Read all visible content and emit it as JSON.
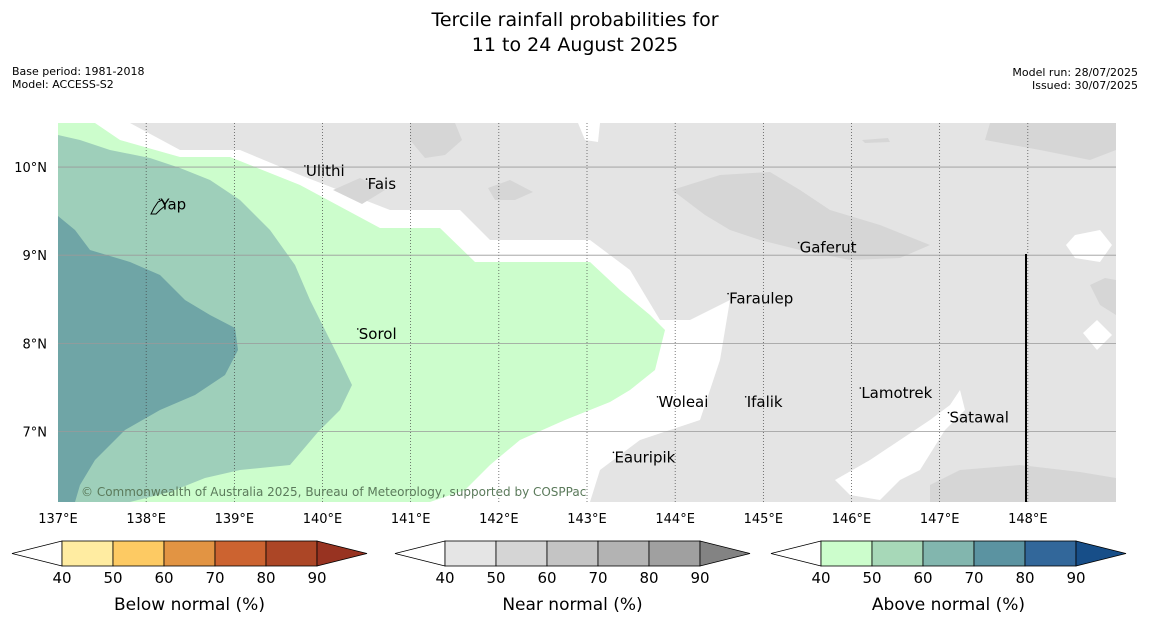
{
  "title": {
    "line1": "Tercile rainfall probabilities for",
    "line2": "11 to 24 August 2025"
  },
  "meta_left": {
    "base_period": "Base period: 1981-2018",
    "model": "Model: ACCESS-S2"
  },
  "meta_right": {
    "model_run": "Model run: 28/07/2025",
    "issued": "Issued: 30/07/2025"
  },
  "copyright": "© Commonwealth of Australia 2025, Bureau of Meteorology, supported by COSPPac",
  "map": {
    "lon_range": [
      137,
      149
    ],
    "lat_range": [
      6.2,
      10.5
    ],
    "lon_ticks": [
      {
        "value": 137,
        "label": "137°E"
      },
      {
        "value": 138,
        "label": "138°E"
      },
      {
        "value": 139,
        "label": "139°E"
      },
      {
        "value": 140,
        "label": "140°E"
      },
      {
        "value": 141,
        "label": "141°E"
      },
      {
        "value": 142,
        "label": "142°E"
      },
      {
        "value": 143,
        "label": "143°E"
      },
      {
        "value": 144,
        "label": "144°E"
      },
      {
        "value": 145,
        "label": "145°E"
      },
      {
        "value": 146,
        "label": "146°E"
      },
      {
        "value": 147,
        "label": "147°E"
      },
      {
        "value": 148,
        "label": "148°E"
      }
    ],
    "lat_ticks": [
      {
        "value": 10,
        "label": "10°N"
      },
      {
        "value": 9,
        "label": "9°N"
      },
      {
        "value": 8,
        "label": "8°N"
      },
      {
        "value": 7,
        "label": "7°N"
      }
    ],
    "places": [
      {
        "name": "Ulithi",
        "lon": 139.8,
        "lat": 9.9
      },
      {
        "name": "Fais",
        "lon": 140.5,
        "lat": 9.75
      },
      {
        "name": "Yap",
        "lon": 138.15,
        "lat": 9.52
      },
      {
        "name": "Gaferut",
        "lon": 145.4,
        "lat": 9.03
      },
      {
        "name": "Faraulep",
        "lon": 144.6,
        "lat": 8.45
      },
      {
        "name": "Sorol",
        "lon": 140.4,
        "lat": 8.05
      },
      {
        "name": "Lamotrek",
        "lon": 146.1,
        "lat": 7.38
      },
      {
        "name": "Woleai",
        "lon": 143.8,
        "lat": 7.28
      },
      {
        "name": "Ifalik",
        "lon": 144.8,
        "lat": 7.28
      },
      {
        "name": "Satawal",
        "lon": 147.1,
        "lat": 7.1
      },
      {
        "name": "Eauripik",
        "lon": 143.3,
        "lat": 6.65
      }
    ],
    "colors": {
      "above_40_50": "#ccfdcc",
      "above_50_60": "#9ecfba",
      "above_60_70": "#6fa5a6",
      "near_40_50": "#e4e4e4",
      "near_50_60": "#d6d6d6",
      "white": "#ffffff"
    }
  },
  "colorbars": [
    {
      "label": "Below normal (%)",
      "ticks": [
        "40",
        "50",
        "60",
        "70",
        "80",
        "90"
      ],
      "colors": [
        "#ffeca1",
        "#fdca63",
        "#e29443",
        "#cc6330",
        "#ac4626"
      ],
      "under_color": "#ffffff",
      "over_color": "#983321"
    },
    {
      "label": "Near normal (%)",
      "ticks": [
        "40",
        "50",
        "60",
        "70",
        "80",
        "90"
      ],
      "colors": [
        "#e5e5e5",
        "#d5d5d5",
        "#c4c4c4",
        "#b3b3b3",
        "#a0a0a0"
      ],
      "under_color": "#ffffff",
      "over_color": "#838383"
    },
    {
      "label": "Above normal (%)",
      "ticks": [
        "40",
        "50",
        "60",
        "70",
        "80",
        "90"
      ],
      "colors": [
        "#ccfdcc",
        "#a7d8b8",
        "#82b6ae",
        "#5b93a1",
        "#32679a"
      ],
      "under_color": "#ffffff",
      "over_color": "#174e88"
    }
  ]
}
